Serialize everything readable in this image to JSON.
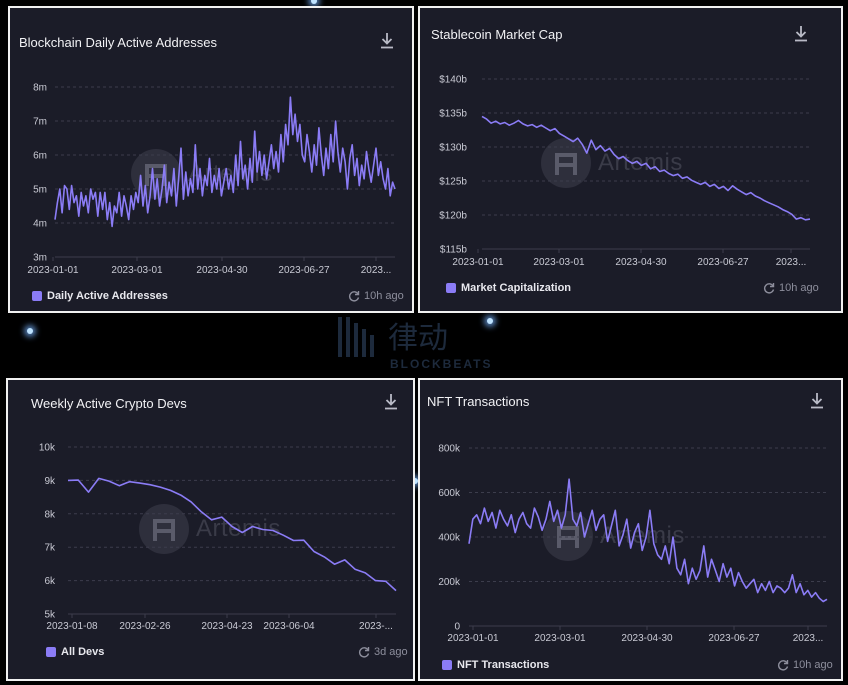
{
  "colors": {
    "line": "#8b7cf6",
    "grid": "#3c3d4c",
    "panel_bg": "#1b1c28",
    "watermark": "#3a3b48"
  },
  "watermark": {
    "brand": "Artemis",
    "site_cn": "律动",
    "site_en": "BLOCKBEATS"
  },
  "panels": [
    {
      "title": "Blockchain Daily Active Addresses",
      "legend": "Daily Active Addresses",
      "updated": "10h ago",
      "x_ticks": [
        "2023-01-01",
        "2023-03-01",
        "2023-04-30",
        "2023-06-27",
        "2023..."
      ],
      "y_ticks": [
        "3m",
        "4m",
        "5m",
        "6m",
        "7m",
        "8m"
      ]
    },
    {
      "title": "Stablecoin Market Cap",
      "legend": "Market Capitalization",
      "updated": "10h ago",
      "x_ticks": [
        "2023-01-01",
        "2023-03-01",
        "2023-04-30",
        "2023-06-27",
        "2023..."
      ],
      "y_ticks": [
        "$115b",
        "$120b",
        "$125b",
        "$130b",
        "$135b",
        "$140b"
      ]
    },
    {
      "title": "Weekly Active Crypto Devs",
      "legend": "All Devs",
      "updated": "3d ago",
      "x_ticks": [
        "2023-01-08",
        "2023-02-26",
        "2023-04-23",
        "2023-06-04",
        "2023-..."
      ],
      "y_ticks": [
        "5k",
        "6k",
        "7k",
        "8k",
        "9k",
        "10k"
      ]
    },
    {
      "title": "NFT Transactions",
      "legend": "NFT Transactions",
      "updated": "10h ago",
      "x_ticks": [
        "2023-01-01",
        "2023-03-01",
        "2023-04-30",
        "2023-06-27",
        "2023..."
      ],
      "y_ticks": [
        "0",
        "200k",
        "400k",
        "600k",
        "800k"
      ]
    }
  ],
  "chart_data": [
    {
      "type": "line",
      "title": "Blockchain Daily Active Addresses",
      "xlabel": "",
      "ylabel": "",
      "ylim": [
        3000000,
        8000000
      ],
      "grid": true,
      "legend_position": "bottom-left",
      "series": [
        {
          "name": "Daily Active Addresses",
          "unit": "millions",
          "x_start": "2023-01-01",
          "x_end": "2023-08-22",
          "values": [
            4.1,
            4.6,
            5.0,
            4.3,
            5.1,
            5.0,
            4.4,
            5.1,
            4.6,
            4.8,
            4.2,
            4.9,
            4.5,
            4.8,
            4.3,
            5.0,
            4.7,
            4.9,
            4.2,
            4.9,
            4.4,
            4.9,
            4.1,
            4.6,
            3.9,
            4.5,
            4.3,
            4.9,
            4.2,
            4.8,
            4.5,
            4.1,
            4.8,
            4.4,
            4.9,
            4.6,
            5.4,
            4.5,
            5.1,
            4.3,
            4.8,
            5.6,
            4.7,
            5.3,
            4.5,
            5.0,
            5.7,
            4.6,
            5.2,
            4.8,
            5.6,
            4.5,
            5.3,
            6.2,
            4.7,
            5.5,
            4.8,
            5.3,
            4.9,
            6.3,
            5.0,
            5.6,
            4.8,
            5.4,
            5.1,
            5.9,
            4.9,
            5.4,
            5.0,
            5.6,
            4.8,
            5.2,
            5.6,
            5.0,
            5.4,
            4.9,
            6.0,
            5.1,
            6.4,
            5.3,
            5.7,
            5.0,
            5.9,
            5.2,
            6.7,
            5.5,
            6.1,
            5.4,
            6.0,
            5.3,
            5.8,
            6.3,
            5.6,
            6.1,
            5.5,
            6.6,
            5.8,
            6.9,
            6.3,
            7.7,
            6.6,
            7.2,
            6.4,
            6.9,
            6.0,
            5.8,
            6.6,
            6.1,
            5.5,
            6.3,
            5.7,
            6.8,
            6.0,
            5.4,
            6.2,
            5.6,
            6.6,
            5.8,
            7.0,
            6.1,
            5.5,
            6.2,
            5.8,
            5.0,
            5.9,
            6.3,
            5.4,
            5.9,
            5.1,
            5.7,
            5.3,
            6.1,
            5.6,
            5.2,
            5.7,
            6.2,
            5.4,
            5.8,
            5.3,
            5.0,
            5.6,
            4.8,
            5.2,
            5.0
          ]
        }
      ]
    },
    {
      "type": "line",
      "title": "Stablecoin Market Cap",
      "xlabel": "",
      "ylabel": "",
      "ylim": [
        115,
        140
      ],
      "grid": true,
      "legend_position": "bottom-left",
      "series": [
        {
          "name": "Market Capitalization",
          "unit": "$b",
          "x_start": "2023-01-01",
          "x_end": "2023-08-22",
          "values": [
            134.5,
            134.1,
            133.5,
            133.8,
            133.4,
            133.6,
            133.2,
            133.5,
            133.9,
            133.4,
            133.1,
            133.3,
            132.9,
            133.2,
            132.8,
            132.4,
            132.7,
            132.0,
            131.6,
            131.2,
            130.8,
            131.3,
            130.4,
            129.1,
            131.0,
            129.6,
            130.2,
            129.4,
            129.8,
            128.9,
            128.3,
            128.6,
            128.0,
            127.6,
            127.9,
            127.3,
            127.6,
            126.8,
            127.1,
            126.4,
            126.6,
            126.1,
            125.8,
            126.0,
            125.4,
            125.6,
            125.1,
            124.8,
            124.5,
            124.8,
            124.2,
            124.5,
            123.9,
            124.2,
            123.6,
            124.3,
            123.8,
            123.4,
            123.0,
            123.3,
            122.8,
            122.5,
            122.1,
            121.8,
            121.5,
            121.2,
            120.8,
            120.5,
            120.1,
            119.4,
            119.6,
            119.3,
            119.4
          ]
        }
      ]
    },
    {
      "type": "line",
      "title": "Weekly Active Crypto Devs",
      "xlabel": "",
      "ylabel": "",
      "ylim": [
        5000,
        10000
      ],
      "grid": true,
      "legend_position": "bottom-left",
      "series": [
        {
          "name": "All Devs",
          "x_start": "2023-01-08",
          "x_end": "2023-08-20",
          "x_step_days": 7,
          "values": [
            9000,
            9010,
            8650,
            9060,
            8980,
            8840,
            8960,
            8920,
            8870,
            8800,
            8700,
            8560,
            8360,
            8060,
            7820,
            7900,
            7620,
            7440,
            7620,
            7530,
            7500,
            7360,
            7200,
            7210,
            6870,
            6710,
            6490,
            6620,
            6340,
            6230,
            6000,
            5980,
            5700
          ]
        }
      ]
    },
    {
      "type": "line",
      "title": "NFT Transactions",
      "xlabel": "",
      "ylabel": "",
      "ylim": [
        0,
        800000
      ],
      "grid": true,
      "legend_position": "bottom-left",
      "series": [
        {
          "name": "NFT Transactions",
          "unit": "thousands",
          "x_start": "2023-01-01",
          "x_end": "2023-08-22",
          "values": [
            370,
            480,
            500,
            460,
            530,
            470,
            510,
            440,
            520,
            480,
            450,
            500,
            420,
            480,
            510,
            460,
            440,
            530,
            490,
            430,
            480,
            560,
            470,
            520,
            440,
            500,
            660,
            480,
            450,
            510,
            400,
            460,
            520,
            430,
            480,
            500,
            380,
            450,
            520,
            360,
            410,
            480,
            350,
            420,
            460,
            340,
            400,
            520,
            370,
            320,
            300,
            360,
            280,
            400,
            260,
            230,
            300,
            190,
            260,
            210,
            250,
            360,
            220,
            300,
            250,
            200,
            280,
            220,
            260,
            180,
            240,
            200,
            170,
            190,
            210,
            150,
            190,
            160,
            200,
            150,
            180,
            170,
            150,
            170,
            230,
            150,
            190,
            140,
            160,
            130,
            150,
            125,
            110,
            120
          ]
        }
      ]
    }
  ]
}
